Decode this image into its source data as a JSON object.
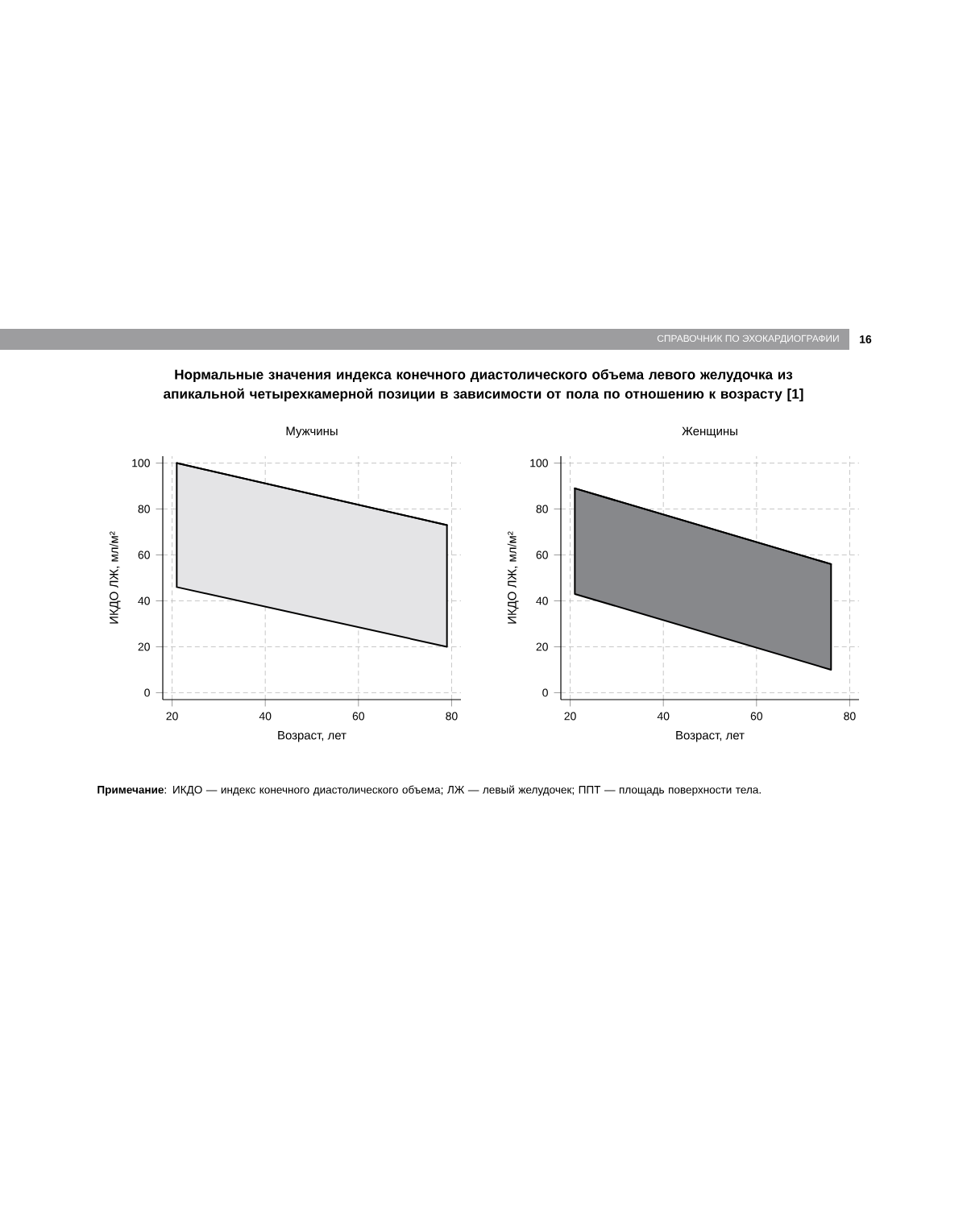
{
  "chart_data": [
    {
      "type": "line",
      "title": "Мужчины",
      "xlabel": "Возраст, лет",
      "ylabel": "ИКДО ЛЖ, мл/м²",
      "series": [
        {
          "color": "#000000",
          "x": [
            21,
            79
          ],
          "values": [
            100,
            73
          ],
          "lower": [
            46,
            20
          ],
          "upper": [
            100,
            73
          ]
        }
      ],
      "xlim": [
        18,
        82
      ],
      "ylim": [
        -3,
        103
      ],
      "xticks": [
        20,
        40,
        60,
        80
      ],
      "yticks": [
        0,
        20,
        40,
        60,
        80,
        100
      ],
      "grid": true,
      "annotations": [
        "СПРАВОЧНИК ПО ЭХОКАРДИОГРАФИИ",
        "16",
        "Нормальные значения индекса конечного диастолического объема левого желудочка из апикальной четырехкамерной позиции в зависимости от пола по отношению к возрасту [1]",
        "**Примечание**: ИКДО — индекс конечного диастолического объема; ЛЖ — левый желудочек; ППТ — площадь поверхности тела."
      ]
    },
    {
      "type": "line",
      "title": "Женщины",
      "xlabel": "Возраст, лет",
      "ylabel": "ИКДО ЛЖ, мл/м²",
      "series": [
        {
          "color": "#000000",
          "x": [
            21,
            76
          ],
          "values": [
            89,
            56
          ],
          "lower": [
            43,
            10
          ],
          "upper": [
            89,
            56
          ]
        }
      ],
      "xlim": [
        18,
        82
      ],
      "ylim": [
        -3,
        103
      ],
      "xticks": [
        20,
        40,
        60,
        80
      ],
      "yticks": [
        0,
        20,
        40,
        60,
        80,
        100
      ],
      "grid": true
    }
  ]
}
